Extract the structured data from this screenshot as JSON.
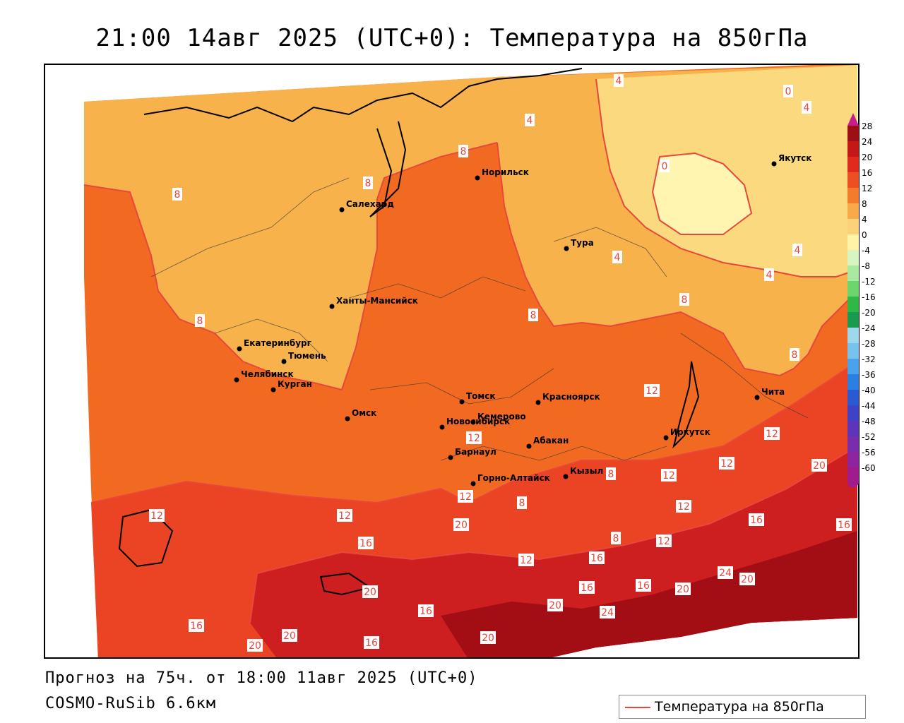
{
  "title": "21:00 14авг 2025 (UTC+0): Температура на 850гПа",
  "forecast_text": "Прогноз на 75ч. от 18:00 11авг 2025 (UTC+0)",
  "model_text": "COSMO-RuSib 6.6км",
  "legend_label": "Температура на 850гПа",
  "colors": {
    "line": "#e8473c",
    "t0": "#fff5b0",
    "t4": "#fbd97e",
    "t8": "#f7b24c",
    "t12": "#f26a21",
    "t16": "#ea4424",
    "t20": "#cd1f1f",
    "t24": "#a30d14"
  },
  "scale": {
    "labels": [
      "28",
      "24",
      "20",
      "16",
      "12",
      "8",
      "4",
      "0",
      "-4",
      "-8",
      "-12",
      "-16",
      "-20",
      "-24",
      "-28",
      "-32",
      "-36",
      "-40",
      "-44",
      "-48",
      "-52",
      "-56",
      "-60"
    ],
    "colors": [
      "#9e0e16",
      "#c41717",
      "#e02a1e",
      "#ee4f22",
      "#f47a2c",
      "#f8a94a",
      "#fbd27a",
      "#fff3a8",
      "#d6f5c0",
      "#a8eaa0",
      "#6cd66c",
      "#2fb845",
      "#1a9a4f",
      "#9fd8ec",
      "#76c4ee",
      "#4aa3ea",
      "#2b7fe0",
      "#2a5ad2",
      "#3f41c6",
      "#5c36b8",
      "#7a2cae",
      "#8e24a0",
      "#a01c8e"
    ]
  },
  "cities": [
    {
      "name": "Норильск"
    },
    {
      "name": "Якутск"
    },
    {
      "name": "Салехард"
    },
    {
      "name": "Тура"
    },
    {
      "name": "Ханты-Мансийск"
    },
    {
      "name": "Екатеринбург"
    },
    {
      "name": "Тюмень"
    },
    {
      "name": "Челябинск"
    },
    {
      "name": "Курган"
    },
    {
      "name": "Томск"
    },
    {
      "name": "Красноярск"
    },
    {
      "name": "Чита"
    },
    {
      "name": "Омск"
    },
    {
      "name": "Новосибирск"
    },
    {
      "name": "Кемерово"
    },
    {
      "name": "Иркутск"
    },
    {
      "name": "Абакан"
    },
    {
      "name": "Барнаул"
    },
    {
      "name": "Кызыл"
    },
    {
      "name": "Горно-Алтайск"
    }
  ],
  "contour_labels": [
    "4",
    "0",
    "4",
    "4",
    "8",
    "8",
    "0",
    "8",
    "8",
    "4",
    "4",
    "4",
    "8",
    "8",
    "8",
    "12",
    "12",
    "12",
    "12",
    "20",
    "12",
    "12",
    "12",
    "8",
    "8",
    "12",
    "12",
    "16",
    "16",
    "20",
    "16",
    "12",
    "8",
    "12",
    "16",
    "16",
    "16",
    "20",
    "24",
    "20",
    "20",
    "16",
    "24",
    "20",
    "20",
    "16",
    "20",
    "20",
    "16"
  ]
}
